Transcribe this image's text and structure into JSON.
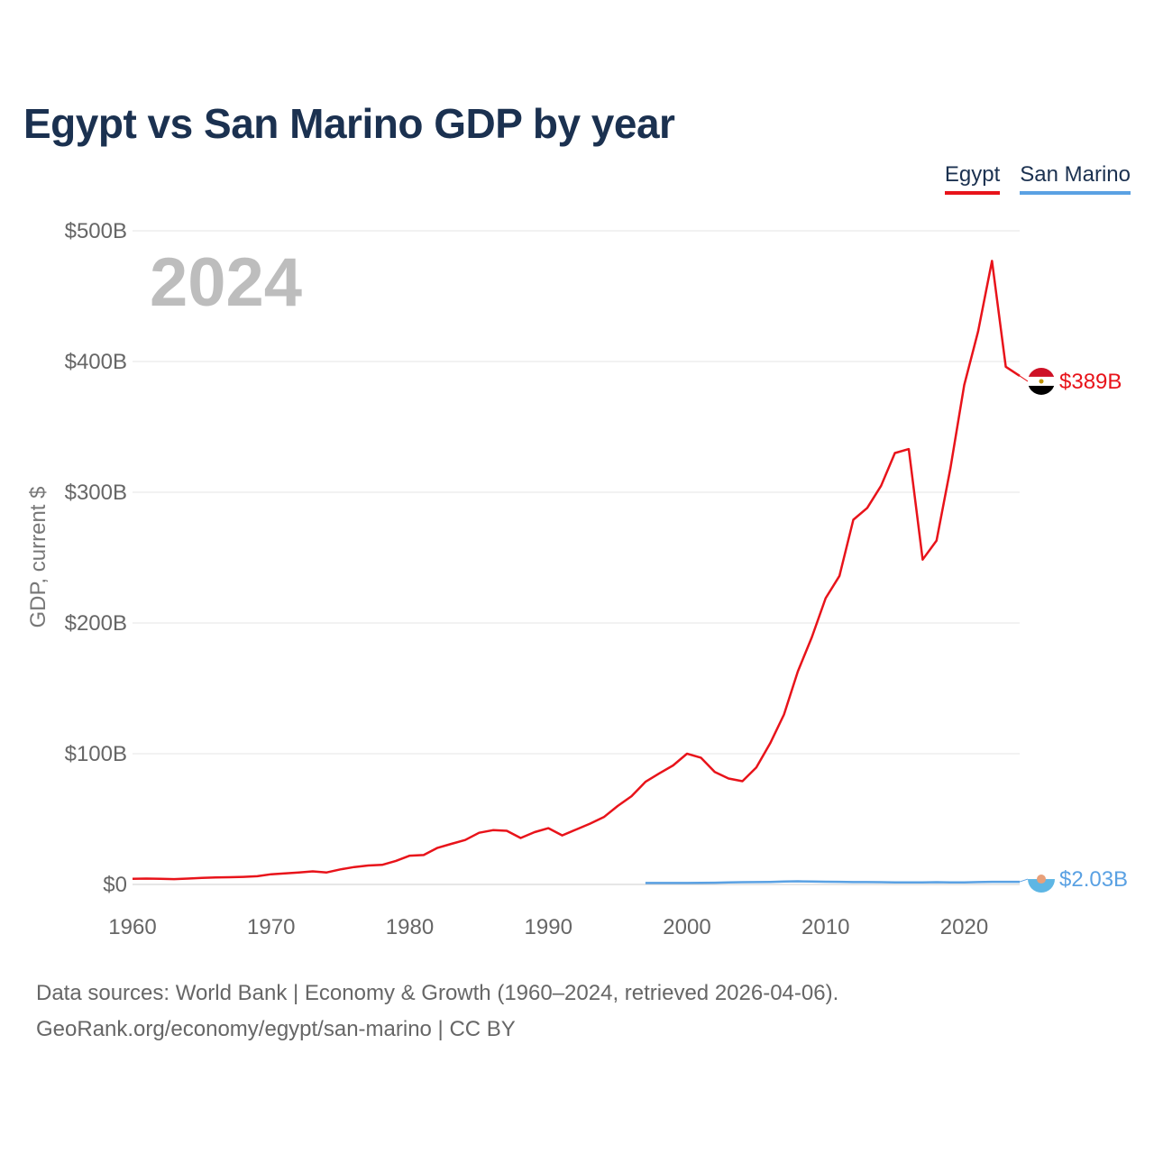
{
  "title": "Egypt vs San Marino GDP by year",
  "legend": {
    "egypt": "Egypt",
    "san_marino": "San Marino"
  },
  "colors": {
    "egypt": "#e8131a",
    "san_marino": "#5aa1e3",
    "title": "#1b3150"
  },
  "year_label": "2024",
  "end_labels": {
    "egypt": "$389B",
    "san_marino": "$2.03B"
  },
  "footer": {
    "line1": "Data sources: World Bank | Economy & Growth (1960–2024, retrieved 2026-04-06).",
    "line2": "GeoRank.org/economy/egypt/san-marino | CC BY"
  },
  "chart_data": {
    "type": "line",
    "title": "Egypt vs San Marino GDP by year",
    "xlabel": "",
    "ylabel": "GDP, current $",
    "xlim": [
      1960,
      2024
    ],
    "ylim": [
      0,
      500
    ],
    "y_unit": "billions USD",
    "x_ticks": [
      1960,
      1970,
      1980,
      1990,
      2000,
      2010,
      2020
    ],
    "x_tick_labels": [
      "1960",
      "1970",
      "1980",
      "1990",
      "2000",
      "2010",
      "2020"
    ],
    "y_ticks": [
      0,
      100,
      200,
      300,
      400,
      500
    ],
    "y_tick_labels": [
      "$0",
      "$100B",
      "$200B",
      "$300B",
      "$400B",
      "$500B"
    ],
    "series": [
      {
        "name": "Egypt",
        "x": [
          1960,
          1961,
          1962,
          1963,
          1964,
          1965,
          1966,
          1967,
          1968,
          1969,
          1970,
          1971,
          1972,
          1973,
          1974,
          1975,
          1976,
          1977,
          1978,
          1979,
          1980,
          1981,
          1982,
          1983,
          1984,
          1985,
          1986,
          1987,
          1988,
          1989,
          1990,
          1991,
          1992,
          1993,
          1994,
          1995,
          1996,
          1997,
          1998,
          1999,
          2000,
          2001,
          2002,
          2003,
          2004,
          2005,
          2006,
          2007,
          2008,
          2009,
          2010,
          2011,
          2012,
          2013,
          2014,
          2015,
          2016,
          2017,
          2018,
          2019,
          2020,
          2021,
          2022,
          2023,
          2024
        ],
        "values": [
          4.3,
          4.5,
          4.3,
          4.1,
          4.5,
          5.0,
          5.3,
          5.5,
          5.8,
          6.3,
          7.8,
          8.5,
          9.2,
          10.0,
          9.2,
          11.5,
          13.3,
          14.5,
          15.0,
          18.0,
          22.0,
          22.5,
          28.0,
          31.0,
          34.0,
          39.5,
          41.5,
          41.0,
          35.5,
          40.0,
          43.0,
          37.5,
          42.0,
          46.5,
          51.5,
          60.0,
          67.5,
          78.5,
          85.0,
          91.0,
          100.0,
          97.0,
          86.0,
          81.0,
          79.0,
          89.5,
          108.0,
          130.0,
          163.0,
          189.0,
          219.0,
          236.0,
          279.0,
          288.0,
          305.0,
          330.0,
          333.0,
          248.5,
          263.0,
          318.0,
          382.0,
          423.0,
          477.0,
          396.0,
          389.0
        ]
      },
      {
        "name": "San Marino",
        "x": [
          1997,
          1998,
          1999,
          2000,
          2001,
          2002,
          2003,
          2004,
          2005,
          2006,
          2007,
          2008,
          2009,
          2010,
          2011,
          2012,
          2013,
          2014,
          2015,
          2016,
          2017,
          2018,
          2019,
          2020,
          2021,
          2022,
          2023,
          2024
        ],
        "values": [
          1.1,
          1.1,
          1.1,
          1.1,
          1.2,
          1.3,
          1.5,
          1.7,
          1.8,
          1.9,
          2.2,
          2.4,
          2.2,
          2.1,
          2.0,
          1.8,
          1.8,
          1.7,
          1.5,
          1.5,
          1.6,
          1.7,
          1.6,
          1.5,
          1.8,
          2.0,
          2.0,
          2.03
        ]
      }
    ]
  }
}
